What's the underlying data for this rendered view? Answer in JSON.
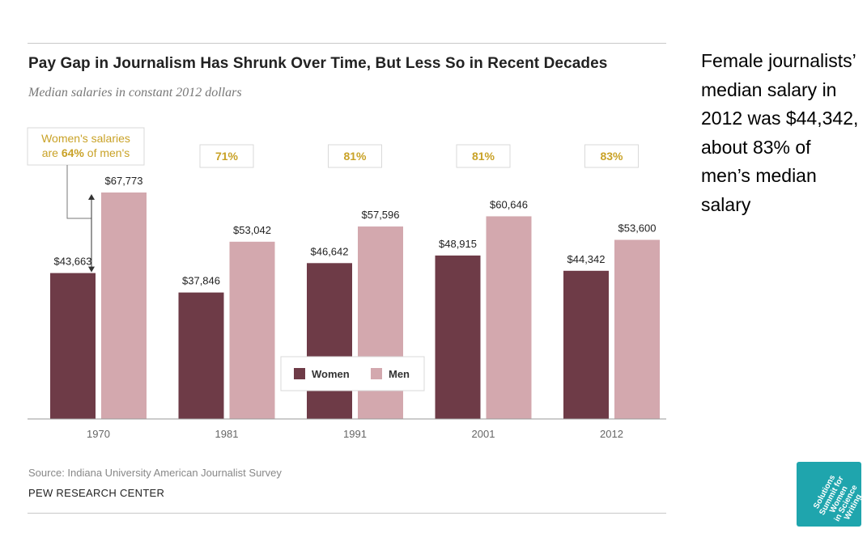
{
  "header": {
    "title": "Pay Gap in Journalism Has Shrunk Over Time, But Less So in Recent Decades",
    "subtitle": "Median salaries in constant 2012 dollars"
  },
  "callout": {
    "line1": "Women's salaries",
    "line2_pre": "are ",
    "line2_pct": "64%",
    "line2_post": " of men's"
  },
  "footer": {
    "source": "Source: Indiana University American Journalist Survey",
    "org": "PEW RESEARCH CENTER"
  },
  "side_note": "Female journalists’ median salary in 2012 was $44,342, about 83% of men’s median salary",
  "logo": {
    "lines": [
      "Solutions",
      "Summit for",
      "Women",
      "in Science",
      "Writing"
    ]
  },
  "colors": {
    "women": "#6e3b47",
    "men": "#d3a8ae",
    "accent": "#c9a227",
    "logo_bg": "#1fa5ad"
  },
  "chart_data": {
    "type": "bar",
    "categories": [
      "1970",
      "1981",
      "1991",
      "2001",
      "2012"
    ],
    "series": [
      {
        "name": "Women",
        "values": [
          43663,
          37846,
          46642,
          48915,
          44342
        ],
        "labels": [
          "$43,663",
          "$37,846",
          "$46,642",
          "$48,915",
          "$44,342"
        ]
      },
      {
        "name": "Men",
        "values": [
          67773,
          53042,
          57596,
          60646,
          53600
        ],
        "labels": [
          "$67,773",
          "$53,042",
          "$57,596",
          "$60,646",
          "$53,600"
        ]
      }
    ],
    "ratio_labels": [
      "64%",
      "71%",
      "81%",
      "81%",
      "83%"
    ],
    "ylim": [
      0,
      70000
    ],
    "grid": false,
    "legend": "center"
  }
}
